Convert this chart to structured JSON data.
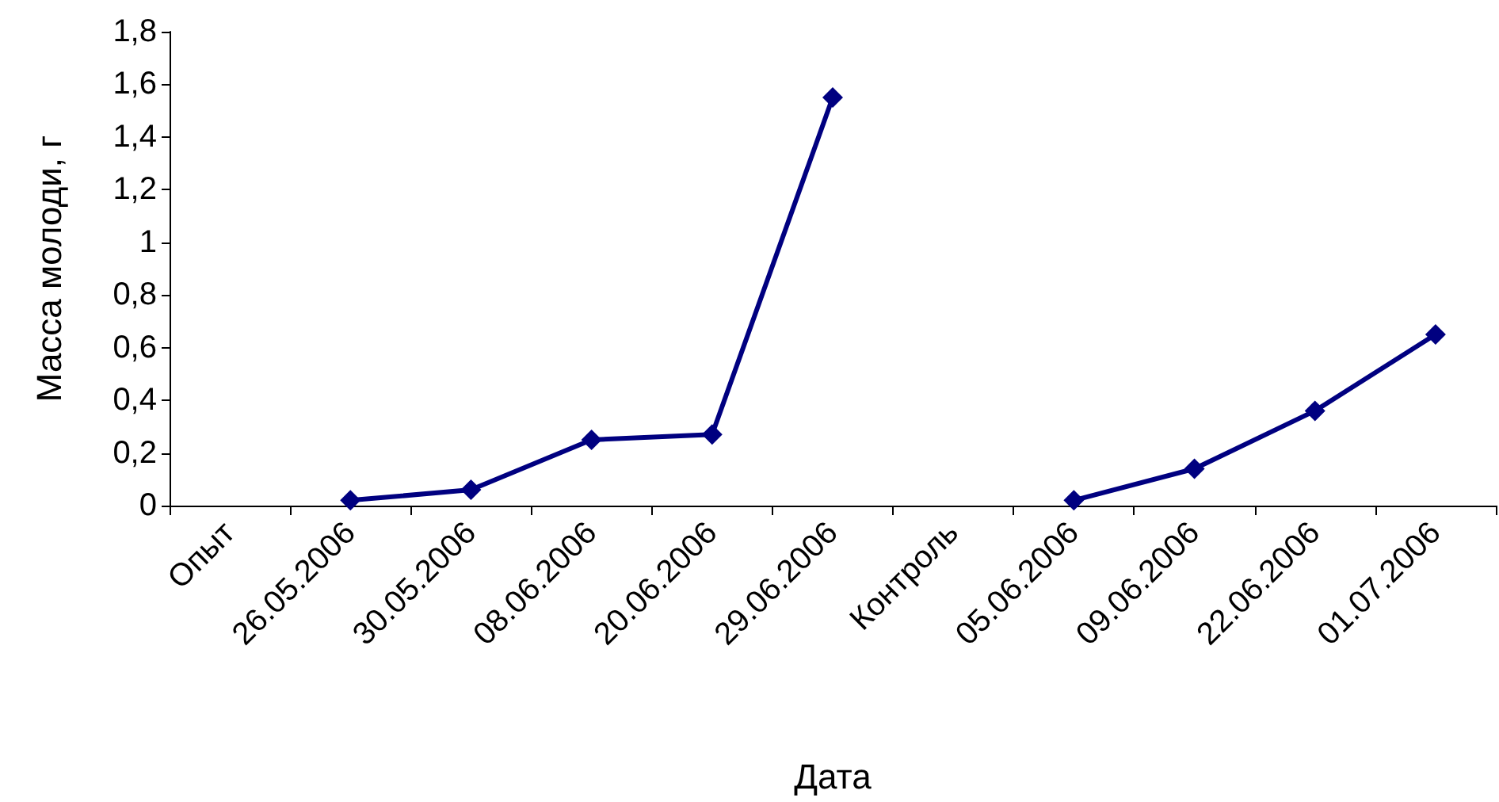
{
  "chart_data": {
    "type": "line",
    "xlabel": "Дата",
    "ylabel": "Масса молоди, г",
    "categories": [
      "Опыт",
      "26.05.2006",
      "30.05.2006",
      "08.06.2006",
      "20.06.2006",
      "29.06.2006",
      "Контроль",
      "05.06.2006",
      "09.06.2006",
      "22.06.2006",
      "01.07.2006"
    ],
    "series": [
      {
        "color": "#000080",
        "values": [
          null,
          0.02,
          0.06,
          0.25,
          0.27,
          1.55,
          null,
          0.02,
          0.14,
          0.36,
          0.65
        ]
      }
    ],
    "ylim": [
      0,
      1.8
    ],
    "yticks": [
      0,
      {
        "value": 0.2,
        "label": "0,2"
      },
      {
        "value": 0.4,
        "label": "0,4"
      },
      {
        "value": 0.6,
        "label": "0,6"
      },
      {
        "value": 0.8,
        "label": "0,8"
      },
      1,
      {
        "value": 1.2,
        "label": "1,2"
      },
      {
        "value": 1.4,
        "label": "1,4"
      },
      {
        "value": 1.6,
        "label": "1,6"
      },
      {
        "value": 1.8,
        "label": "1,8"
      }
    ],
    "grid": false,
    "marker": "diamond",
    "line_style": "solid"
  }
}
